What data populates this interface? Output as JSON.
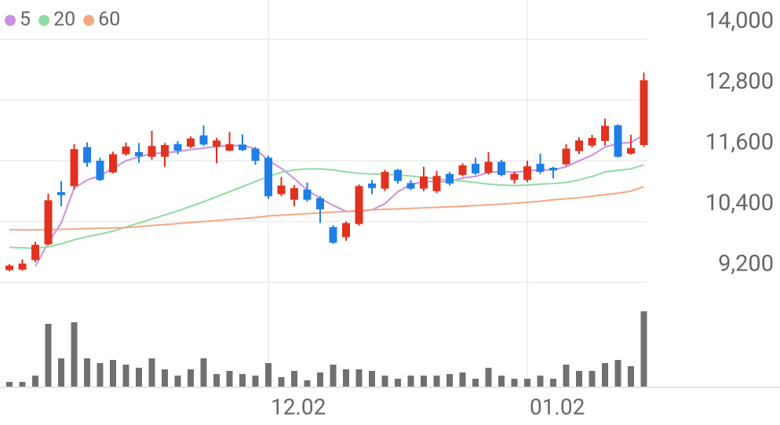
{
  "chart_data": {
    "type": "candlestick",
    "categories": [
      null,
      null,
      null,
      null,
      null,
      null,
      null,
      null,
      null,
      null,
      null,
      null,
      null,
      null,
      null,
      null,
      null,
      null,
      null,
      null,
      "12.02",
      null,
      null,
      null,
      null,
      null,
      null,
      null,
      null,
      null,
      null,
      null,
      null,
      null,
      null,
      null,
      null,
      null,
      null,
      null,
      "01.02",
      null,
      null,
      null,
      null,
      null,
      null,
      null,
      null,
      null
    ],
    "open": [
      9440,
      9450,
      9640,
      9950,
      10980,
      11100,
      11870,
      11600,
      11370,
      11730,
      11770,
      11680,
      11680,
      11930,
      11880,
      12100,
      11880,
      11800,
      11920,
      11840,
      11660,
      10940,
      10830,
      11030,
      10860,
      10290,
      10090,
      10350,
      11150,
      11050,
      11420,
      11160,
      11050,
      11000,
      11340,
      11320,
      11540,
      11360,
      11580,
      11220,
      11220,
      11540,
      11460,
      11530,
      11790,
      11900,
      11990,
      12300,
      11740,
      11910
    ],
    "high": [
      9560,
      9650,
      10000,
      10950,
      11200,
      11930,
      11960,
      11660,
      11780,
      11960,
      11950,
      12190,
      11950,
      11990,
      12080,
      12300,
      12050,
      12170,
      12120,
      11870,
      11700,
      11280,
      11120,
      11170,
      10900,
      10330,
      10400,
      11130,
      11220,
      11420,
      11440,
      11220,
      11480,
      11400,
      11380,
      11550,
      11660,
      11770,
      11620,
      11390,
      11600,
      11740,
      11480,
      11930,
      12060,
      12110,
      12430,
      12320,
      12110,
      13340
    ],
    "low": [
      9420,
      9430,
      9600,
      9930,
      10700,
      11030,
      11480,
      11200,
      11350,
      11700,
      11560,
      11620,
      11480,
      11730,
      11850,
      11890,
      11550,
      11790,
      11790,
      11520,
      10850,
      10900,
      10700,
      10790,
      10370,
      9960,
      10020,
      10320,
      10940,
      11000,
      11150,
      11020,
      11000,
      10960,
      11110,
      11290,
      11320,
      11330,
      11290,
      11150,
      11180,
      11340,
      11250,
      11500,
      11730,
      11860,
      11900,
      11660,
      11720,
      11870
    ],
    "close": [
      9530,
      9570,
      9940,
      10820,
      10920,
      11830,
      11560,
      11220,
      11730,
      11880,
      11690,
      11890,
      11910,
      11800,
      12040,
      11920,
      12000,
      11930,
      11810,
      11600,
      10900,
      11110,
      11060,
      10830,
      10640,
      9980,
      10370,
      11100,
      11060,
      11380,
      11200,
      11050,
      11290,
      11300,
      11150,
      11510,
      11350,
      11580,
      11320,
      11340,
      11490,
      11380,
      11410,
      11840,
      12000,
      12050,
      12290,
      11680,
      11850,
      13190
    ],
    "up_color": "#e2321f",
    "down_color": "#1f7fe6",
    "series": [
      {
        "name": "5",
        "color": "#c98fe2",
        "values": [
          null,
          null,
          9520,
          9980,
          10370,
          11060,
          11220,
          11300,
          11450,
          11600,
          11680,
          11740,
          11760,
          11780,
          11820,
          11850,
          11880,
          11900,
          11900,
          11840,
          11600,
          11450,
          11250,
          11020,
          10860,
          10720,
          10600,
          10600,
          10630,
          10750,
          10990,
          11130,
          11190,
          11190,
          11190,
          11260,
          11290,
          11370,
          11390,
          11370,
          11400,
          11420,
          11420,
          11480,
          11600,
          11710,
          11870,
          11940,
          11960,
          12110
        ]
      },
      {
        "name": "20",
        "color": "#8fdba2",
        "values": [
          9890,
          9880,
          9870,
          9900,
          9960,
          10040,
          10100,
          10150,
          10210,
          10290,
          10370,
          10450,
          10530,
          10610,
          10700,
          10790,
          10890,
          10990,
          11090,
          11190,
          11290,
          11370,
          11420,
          11440,
          11440,
          11420,
          11380,
          11350,
          11340,
          11330,
          11320,
          11300,
          11270,
          11240,
          11220,
          11200,
          11170,
          11140,
          11120,
          11110,
          11120,
          11140,
          11150,
          11170,
          11220,
          11290,
          11380,
          11410,
          11440,
          11520
        ]
      },
      {
        "name": "60",
        "color": "#f5a784",
        "values": [
          10240,
          10235,
          10235,
          10240,
          10245,
          10250,
          10260,
          10270,
          10275,
          10280,
          10300,
          10320,
          10340,
          10360,
          10380,
          10400,
          10420,
          10440,
          10460,
          10480,
          10510,
          10525,
          10540,
          10555,
          10570,
          10585,
          10600,
          10615,
          10630,
          10640,
          10650,
          10660,
          10670,
          10680,
          10690,
          10700,
          10715,
          10730,
          10745,
          10760,
          10780,
          10800,
          10830,
          10850,
          10870,
          10900,
          10930,
          10960,
          11000,
          11090
        ]
      }
    ],
    "volume": [
      6,
      6,
      14,
      80,
      36,
      82,
      36,
      30,
      34,
      28,
      24,
      36,
      22,
      14,
      22,
      36,
      16,
      20,
      16,
      14,
      30,
      12,
      20,
      8,
      18,
      28,
      22,
      22,
      20,
      14,
      10,
      14,
      14,
      14,
      16,
      18,
      10,
      24,
      14,
      10,
      10,
      14,
      10,
      28,
      20,
      20,
      30,
      34,
      26,
      96
    ],
    "volume_color": "#707070",
    "vlim": [
      0,
      100
    ],
    "ylim": [
      9200,
      14000
    ],
    "yticks": [
      {
        "value": 9200,
        "label": "9,200"
      },
      {
        "value": 10400,
        "label": "10,400"
      },
      {
        "value": 11600,
        "label": "11,600"
      },
      {
        "value": 12800,
        "label": "12,800"
      },
      {
        "value": 14000,
        "label": "14,000"
      }
    ],
    "grid": true
  }
}
